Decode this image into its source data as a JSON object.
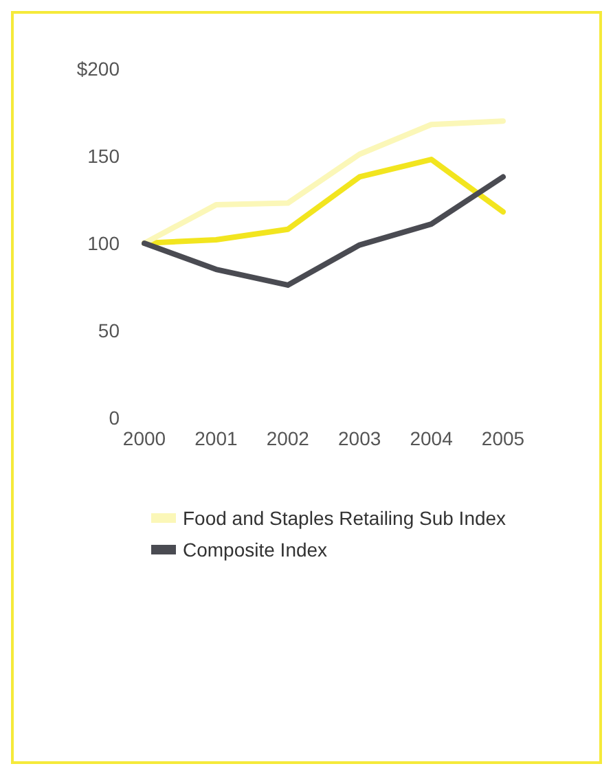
{
  "chart_data": {
    "type": "line",
    "categories": [
      "2000",
      "2001",
      "2002",
      "2003",
      "2004",
      "2005"
    ],
    "series": [
      {
        "color": "#f2e51f",
        "values": [
          100,
          102,
          108,
          138,
          148,
          118
        ]
      },
      {
        "name": "Food and Staples Retailing Sub Index",
        "color": "#fbf7b8",
        "values": [
          100,
          122,
          123,
          151,
          168,
          170
        ]
      },
      {
        "name": "Composite Index",
        "color": "#4a4b52",
        "values": [
          100,
          85,
          76,
          99,
          111,
          138
        ]
      }
    ],
    "ylim": [
      0,
      200
    ],
    "yticks": [
      0,
      50,
      100,
      150,
      {
        "value": 200,
        "label": "$200"
      }
    ],
    "grid": false,
    "legend": "bottom",
    "marker": "none",
    "line_style": "solid"
  }
}
